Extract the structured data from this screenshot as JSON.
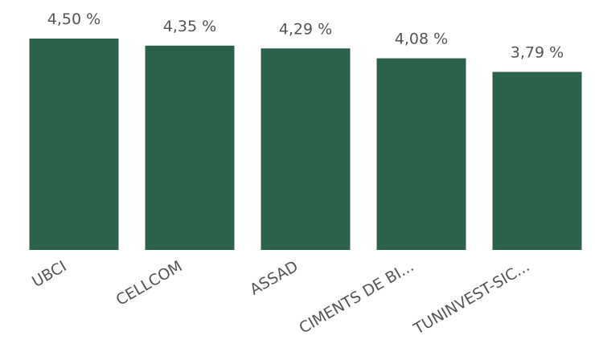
{
  "chart_data": {
    "type": "bar",
    "categories": [
      "UBCI",
      "CELLCOM",
      "ASSAD",
      "CIMENTS DE BI...",
      "TUNINVEST-SIC..."
    ],
    "values": [
      4.5,
      4.35,
      4.29,
      4.08,
      3.79
    ],
    "value_labels": [
      "4,50 %",
      "4,35 %",
      "4,29 %",
      "4,08 %",
      "3,79 %"
    ],
    "color": "#2b614a"
  }
}
